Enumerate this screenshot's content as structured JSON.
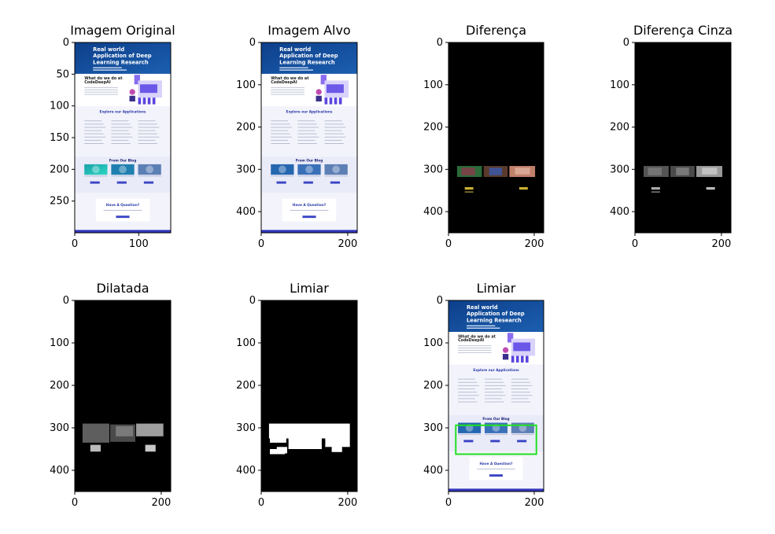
{
  "figure": {
    "panel_titles": [
      "Imagem Original",
      "Imagem Alvo",
      "Diferença",
      "Diferença Cinza",
      "Dilatada",
      "Limiar",
      "Limiar"
    ]
  },
  "webpage_mock": {
    "hero_lines": [
      "Real world",
      "Application of Deep",
      "Learning Research"
    ],
    "what_title": "What do we do at",
    "what_title2": "CodeDeepAI",
    "explore_title": "Explore our Applications",
    "blog_title": "From Our Blog",
    "question_title": "Have A Question?"
  },
  "colors": {
    "hero_blue": "#1c5fb0",
    "hero_dark": "#0d3f8a",
    "page_bg": "#f3f4fb",
    "accent": "#3b45c4",
    "diff_bg": "#000000",
    "box": "#22e022"
  },
  "chart_data": [
    {
      "type": "image",
      "title": "Imagem Original",
      "xlim": [
        0,
        150
      ],
      "ylim": [
        300,
        0
      ],
      "xticks": [
        0,
        100
      ],
      "yticks": [
        0,
        50,
        100,
        150,
        200,
        250
      ]
    },
    {
      "type": "image",
      "title": "Imagem Alvo",
      "xlim": [
        0,
        222
      ],
      "ylim": [
        450,
        0
      ],
      "xticks": [
        0,
        200
      ],
      "yticks": [
        0,
        100,
        200,
        300,
        400
      ]
    },
    {
      "type": "image",
      "title": "Diferença",
      "xlim": [
        0,
        222
      ],
      "ylim": [
        450,
        0
      ],
      "xticks": [
        0,
        200
      ],
      "yticks": [
        0,
        100,
        200,
        300,
        400
      ]
    },
    {
      "type": "image",
      "title": "Diferença Cinza",
      "xlim": [
        0,
        222
      ],
      "ylim": [
        450,
        0
      ],
      "xticks": [
        0,
        200
      ],
      "yticks": [
        0,
        100,
        200,
        300,
        400
      ]
    },
    {
      "type": "image",
      "title": "Dilatada",
      "xlim": [
        0,
        222
      ],
      "ylim": [
        450,
        0
      ],
      "xticks": [
        0,
        200
      ],
      "yticks": [
        0,
        100,
        200,
        300,
        400
      ]
    },
    {
      "type": "image",
      "title": "Limiar",
      "xlim": [
        0,
        222
      ],
      "ylim": [
        450,
        0
      ],
      "xticks": [
        0,
        200
      ],
      "yticks": [
        0,
        100,
        200,
        300,
        400
      ]
    },
    {
      "type": "image",
      "title": "Limiar",
      "xlim": [
        0,
        222
      ],
      "ylim": [
        450,
        0
      ],
      "xticks": [
        0,
        200
      ],
      "yticks": [
        0,
        100,
        200,
        300,
        400
      ],
      "detected_box": {
        "x0": 17,
        "y0": 294,
        "x1": 205,
        "y1": 362
      }
    }
  ]
}
